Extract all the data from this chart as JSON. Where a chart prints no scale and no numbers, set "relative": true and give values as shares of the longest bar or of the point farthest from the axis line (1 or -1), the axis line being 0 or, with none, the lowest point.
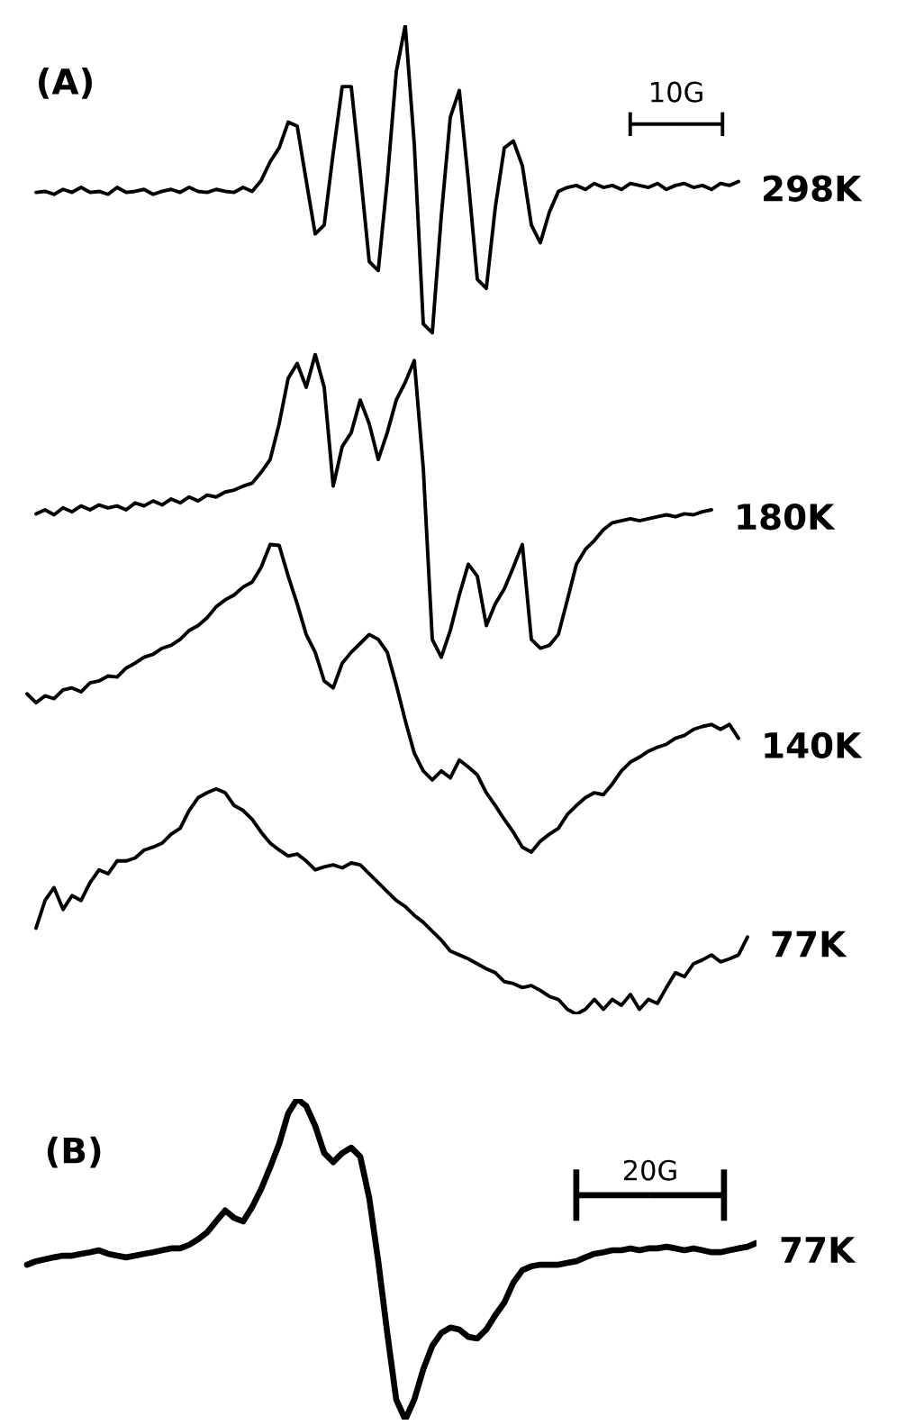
{
  "chart_data": [
    {
      "type": "line",
      "title": "(A)",
      "relative": true,
      "annotations": [
        "10G"
      ],
      "categories": [
        null,
        null,
        null,
        null,
        null,
        null,
        null,
        null,
        null,
        null,
        null,
        null,
        null,
        null,
        null,
        null,
        null,
        null,
        null,
        null,
        null,
        null,
        null,
        null,
        null,
        null,
        null,
        null,
        null,
        null,
        null,
        null,
        null,
        null,
        null,
        null,
        null,
        null,
        null,
        null,
        null,
        null,
        null,
        null,
        null,
        null,
        null,
        null,
        null,
        null,
        null,
        null,
        null,
        null,
        null,
        null,
        null,
        null,
        null,
        null,
        null,
        null,
        null,
        null,
        null,
        null,
        null,
        null,
        null,
        null,
        null,
        null,
        null,
        null,
        null,
        null,
        null,
        null,
        null,
        null,
        null,
        null,
        null
      ],
      "series": [
        {
          "name": "298K",
          "color": "#000000",
          "values": [
            null,
            null,
            0.831,
            0.832,
            0.829,
            0.834,
            0.831,
            0.836,
            0.831,
            0.832,
            0.829,
            0.836,
            0.831,
            0.832,
            0.834,
            0.829,
            0.832,
            0.834,
            0.831,
            0.836,
            0.832,
            0.831,
            0.834,
            0.832,
            0.831,
            0.836,
            0.832,
            0.843,
            0.862,
            0.876,
            0.902,
            0.898,
            0.843,
            0.789,
            0.798,
            0.871,
            0.938,
            0.938,
            0.852,
            0.761,
            0.752,
            0.843,
            0.953,
            1.0,
            0.88,
            0.698,
            0.689,
            0.807,
            0.907,
            0.934,
            0.843,
            0.743,
            0.734,
            0.816,
            0.876,
            0.883,
            0.858,
            0.798,
            0.78,
            0.811,
            0.832,
            0.836,
            0.838,
            0.834,
            0.84,
            0.836,
            0.838,
            0.834,
            0.84,
            0.838,
            0.836,
            0.84,
            0.834,
            0.838,
            0.84,
            0.836,
            0.838,
            0.834,
            0.84,
            0.838,
            0.842,
            null,
            null
          ]
        },
        {
          "name": "180K",
          "color": "#000000",
          "values": [
            null,
            null,
            0.506,
            0.51,
            0.505,
            0.512,
            0.508,
            0.514,
            0.51,
            0.515,
            0.512,
            0.514,
            0.51,
            0.517,
            0.514,
            0.519,
            0.515,
            0.521,
            0.517,
            0.523,
            0.519,
            0.525,
            0.523,
            0.528,
            0.53,
            0.534,
            0.537,
            0.548,
            0.561,
            0.597,
            0.643,
            0.658,
            0.634,
            0.667,
            0.634,
            0.534,
            0.574,
            0.588,
            0.621,
            0.597,
            0.561,
            0.588,
            0.621,
            0.639,
            0.661,
            0.552,
            0.379,
            0.361,
            0.388,
            0.424,
            0.455,
            0.443,
            0.393,
            0.415,
            0.43,
            0.452,
            0.475,
            0.379,
            0.37,
            0.373,
            0.384,
            0.419,
            0.455,
            0.47,
            0.479,
            0.49,
            0.497,
            0.499,
            0.501,
            0.499,
            0.501,
            0.503,
            0.505,
            0.503,
            0.506,
            0.505,
            0.508,
            0.51,
            null,
            null,
            null,
            null,
            null
          ]
        },
        {
          "name": "140K",
          "color": "#000000",
          "values": [
            null,
            0.324,
            0.315,
            0.322,
            0.319,
            0.328,
            0.33,
            0.326,
            0.335,
            0.337,
            0.342,
            0.341,
            0.35,
            0.355,
            0.361,
            0.364,
            0.37,
            0.373,
            0.379,
            0.388,
            0.393,
            0.401,
            0.412,
            0.419,
            0.424,
            0.432,
            0.437,
            0.452,
            0.475,
            0.474,
            0.443,
            0.415,
            0.384,
            0.366,
            0.337,
            0.33,
            0.355,
            0.366,
            0.375,
            0.384,
            0.379,
            0.366,
            0.333,
            0.297,
            0.264,
            0.246,
            0.237,
            0.246,
            0.239,
            0.257,
            0.25,
            0.242,
            0.224,
            0.211,
            0.197,
            0.184,
            0.169,
            0.164,
            0.175,
            0.182,
            0.188,
            0.202,
            0.211,
            0.219,
            0.224,
            0.222,
            0.233,
            0.246,
            0.255,
            0.26,
            0.266,
            0.27,
            0.273,
            0.279,
            0.282,
            0.288,
            0.291,
            0.293,
            0.288,
            0.293,
            0.279,
            null,
            null
          ]
        },
        {
          "name": "77K",
          "color": "#000000",
          "values": [
            null,
            null,
            0.087,
            0.115,
            0.128,
            0.106,
            0.12,
            0.115,
            0.133,
            0.146,
            0.142,
            0.155,
            0.155,
            0.158,
            0.166,
            0.169,
            0.173,
            0.182,
            0.188,
            0.206,
            0.219,
            0.224,
            0.228,
            0.224,
            0.211,
            0.206,
            0.197,
            0.184,
            0.173,
            0.166,
            0.16,
            0.162,
            0.155,
            0.146,
            0.149,
            0.151,
            0.148,
            0.153,
            0.151,
            0.142,
            0.133,
            0.124,
            0.115,
            0.109,
            0.1,
            0.093,
            0.084,
            0.075,
            0.064,
            0.06,
            0.056,
            0.051,
            0.046,
            0.042,
            0.033,
            0.031,
            0.027,
            0.029,
            0.024,
            0.018,
            0.015,
            0.005,
            0,
            0.005,
            0.015,
            0.005,
            0.015,
            0.009,
            0.02,
            0.005,
            0.015,
            0.011,
            0.027,
            0.042,
            0.038,
            0.051,
            0.055,
            0.06,
            0.053,
            0.056,
            0.06,
            0.078,
            null
          ]
        }
      ]
    },
    {
      "type": "line",
      "title": "(B)",
      "relative": true,
      "annotations": [
        "20G"
      ],
      "categories": [
        null,
        null,
        null,
        null,
        null,
        null,
        null,
        null,
        null,
        null,
        null,
        null,
        null,
        null,
        null,
        null,
        null,
        null,
        null,
        null,
        null,
        null,
        null,
        null,
        null,
        null,
        null,
        null,
        null,
        null,
        null,
        null,
        null,
        null,
        null,
        null,
        null,
        null,
        null,
        null,
        null,
        null,
        null,
        null,
        null,
        null,
        null,
        null,
        null,
        null,
        null,
        null,
        null,
        null,
        null,
        null,
        null,
        null,
        null,
        null,
        null,
        null,
        null,
        null,
        null,
        null,
        null,
        null,
        null,
        null,
        null,
        null,
        null,
        null,
        null,
        null,
        null,
        null,
        null,
        null,
        null,
        null,
        null
      ],
      "series": [
        {
          "name": "77K",
          "color": "#000000",
          "values": [
            null,
            0.483,
            0.494,
            0.5,
            0.506,
            0.511,
            0.511,
            0.517,
            0.522,
            0.528,
            0.517,
            0.511,
            0.506,
            0.511,
            0.517,
            0.522,
            0.528,
            0.534,
            0.534,
            0.545,
            0.562,
            0.584,
            0.618,
            0.652,
            0.629,
            0.618,
            0.663,
            0.719,
            0.787,
            0.86,
            0.955,
            1.0,
            0.978,
            0.916,
            0.831,
            0.803,
            0.831,
            0.848,
            0.82,
            0.691,
            0.494,
            0.27,
            0.062,
            0,
            0.062,
            0.157,
            0.23,
            0.27,
            0.287,
            0.281,
            0.258,
            0.253,
            0.281,
            0.326,
            0.365,
            0.427,
            0.466,
            0.478,
            0.483,
            0.483,
            0.483,
            0.489,
            0.494,
            0.506,
            0.517,
            0.522,
            0.528,
            0.528,
            0.534,
            0.528,
            0.534,
            0.534,
            0.539,
            0.534,
            0.528,
            0.534,
            0.528,
            0.522,
            0.522,
            0.528,
            0.534,
            0.539,
            0.551
          ]
        }
      ]
    }
  ]
}
